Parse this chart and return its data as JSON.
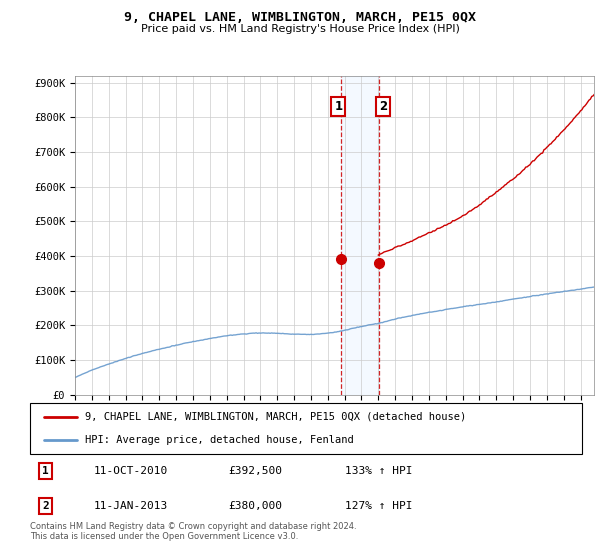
{
  "title": "9, CHAPEL LANE, WIMBLINGTON, MARCH, PE15 0QX",
  "subtitle": "Price paid vs. HM Land Registry's House Price Index (HPI)",
  "ylabel_ticks": [
    "£0",
    "£100K",
    "£200K",
    "£300K",
    "£400K",
    "£500K",
    "£600K",
    "£700K",
    "£800K",
    "£900K"
  ],
  "ytick_values": [
    0,
    100000,
    200000,
    300000,
    400000,
    500000,
    600000,
    700000,
    800000,
    900000
  ],
  "ylim": [
    0,
    920000
  ],
  "x_start_year": 1995,
  "x_end_year": 2025,
  "sale1_date": 2010.78,
  "sale1_price": 392500,
  "sale1_label": "1",
  "sale2_date": 2013.03,
  "sale2_price": 380000,
  "sale2_label": "2",
  "legend_red": "9, CHAPEL LANE, WIMBLINGTON, MARCH, PE15 0QX (detached house)",
  "legend_blue": "HPI: Average price, detached house, Fenland",
  "table_row1": [
    "1",
    "11-OCT-2010",
    "£392,500",
    "133% ↑ HPI"
  ],
  "table_row2": [
    "2",
    "11-JAN-2013",
    "£380,000",
    "127% ↑ HPI"
  ],
  "footer": "Contains HM Land Registry data © Crown copyright and database right 2024.\nThis data is licensed under the Open Government Licence v3.0.",
  "red_color": "#cc0000",
  "blue_color": "#6699cc",
  "shade_color": "#ddeeff",
  "vline_color": "#cc0000",
  "background_color": "#ffffff"
}
